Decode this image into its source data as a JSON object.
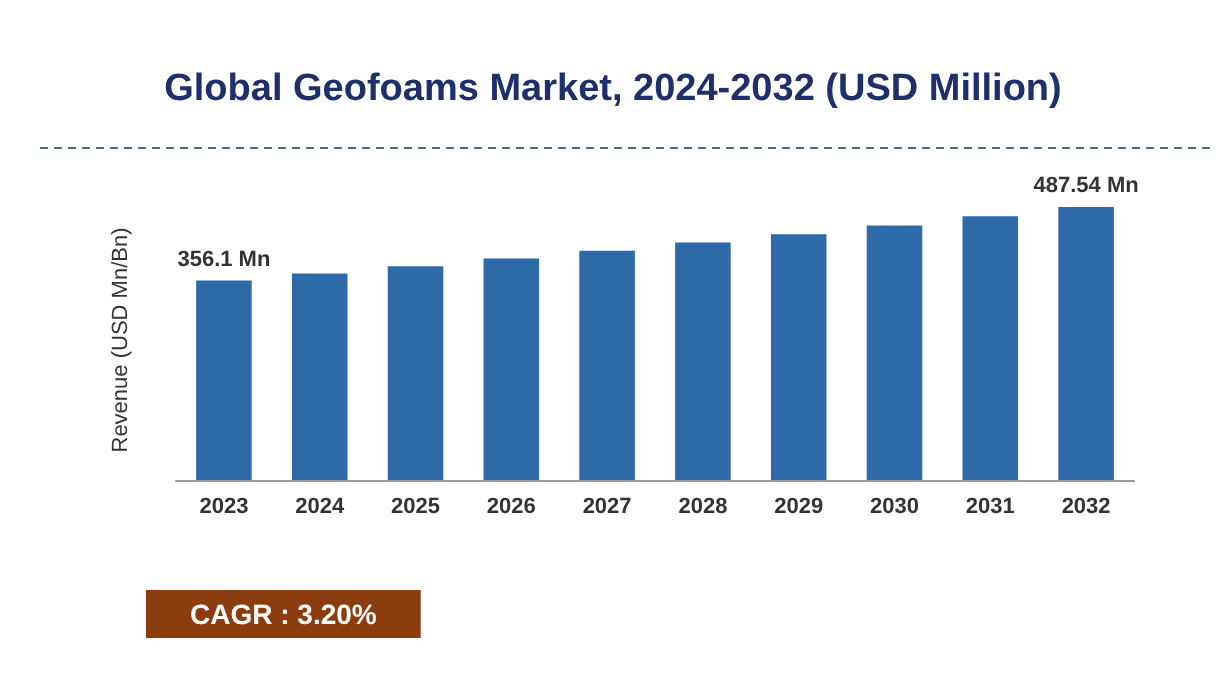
{
  "chart_data": {
    "type": "bar",
    "title": "Global Geofoams Market, 2024-2032 (USD Million)",
    "ylabel": "Revenue (USD Mn/Bn)",
    "categories": [
      "2023",
      "2024",
      "2025",
      "2026",
      "2027",
      "2028",
      "2029",
      "2030",
      "2031",
      "2032"
    ],
    "values": [
      356.1,
      368.7,
      381.8,
      395.4,
      409.4,
      423.9,
      439.0,
      454.6,
      470.8,
      487.54
    ],
    "value_labels": [
      "356.1 Mn",
      null,
      null,
      null,
      null,
      null,
      null,
      null,
      null,
      "487.54 Mn"
    ],
    "color": "#2e6aa8",
    "tick_labels": "x",
    "annotations": [
      "CAGR : 3.20%"
    ]
  }
}
